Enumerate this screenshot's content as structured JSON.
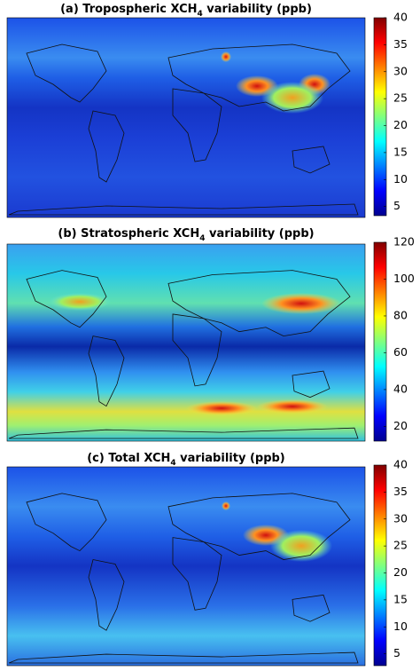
{
  "panels": [
    {
      "title": {
        "prefix": "(a) Tropospheric XCH",
        "subscript": "4",
        "suffix": " variability (ppb)"
      },
      "colorbar": {
        "lim": [
          3.3,
          40
        ],
        "ticks": [
          5,
          10,
          15,
          20,
          25,
          30,
          35,
          40
        ]
      }
    },
    {
      "title": {
        "prefix": "(b) Stratospheric XCH",
        "subscript": "4",
        "suffix": " variability (ppb)"
      },
      "colorbar": {
        "lim": [
          12,
          120
        ],
        "ticks": [
          20,
          40,
          60,
          80,
          100,
          120
        ]
      }
    },
    {
      "title": {
        "prefix": "(c) Total XCH",
        "subscript": "4",
        "suffix": " variability (ppb)"
      },
      "colorbar": {
        "lim": [
          2.8,
          40
        ],
        "ticks": [
          5,
          10,
          15,
          20,
          25,
          30,
          35,
          40
        ]
      }
    }
  ]
}
